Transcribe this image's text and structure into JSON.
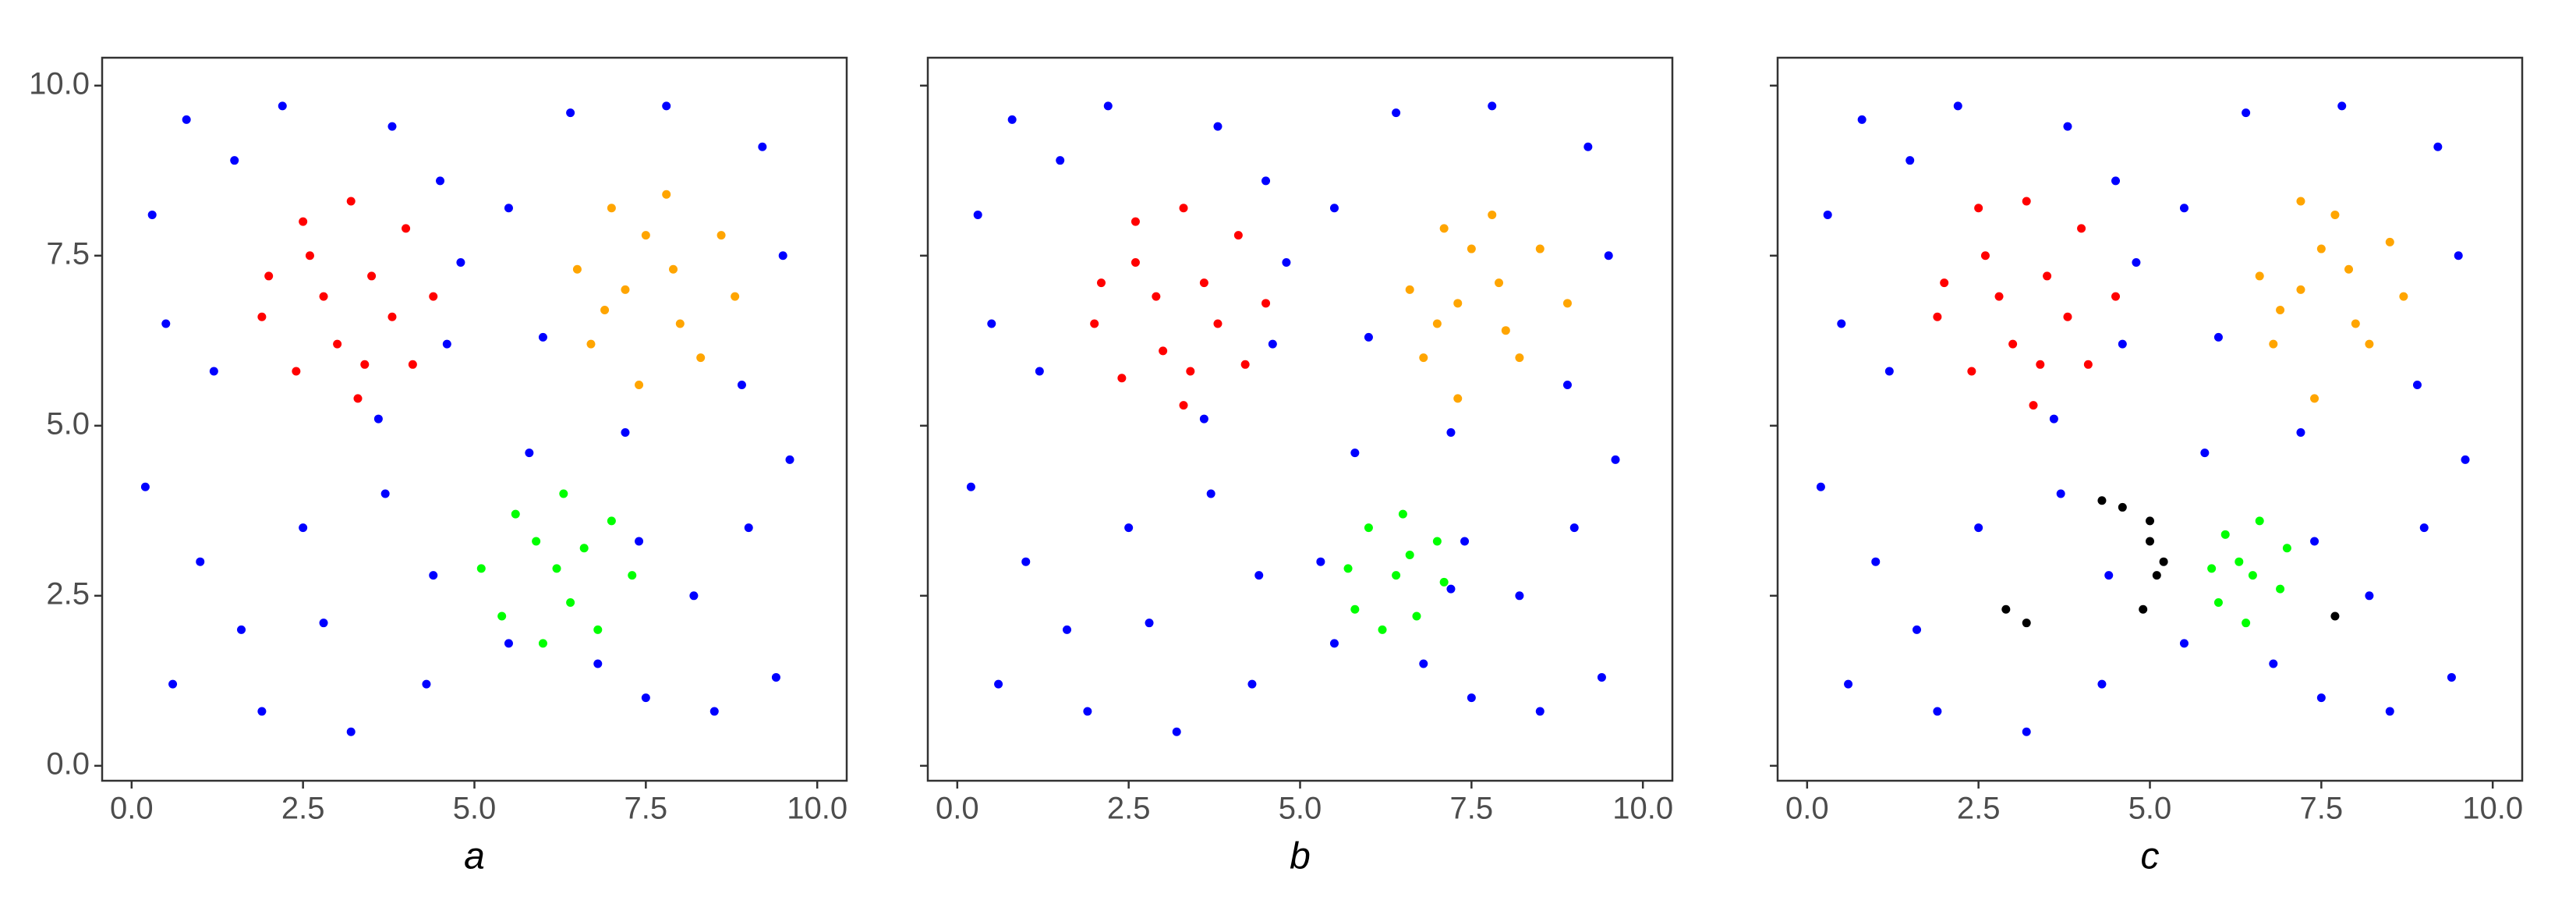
{
  "chart_data": [
    {
      "type": "scatter",
      "xlabel": "a",
      "xlim": [
        -0.43,
        10.43
      ],
      "ylim": [
        -0.22,
        10.41
      ],
      "xticks": [
        {
          "value": 0,
          "label": "0.0"
        },
        {
          "value": 2.5,
          "label": "2.5"
        },
        {
          "value": 5,
          "label": "5.0"
        },
        {
          "value": 7.5,
          "label": "7.5"
        },
        {
          "value": 10,
          "label": "10.0"
        }
      ],
      "yticks": [
        {
          "value": 0,
          "label": "0.0"
        },
        {
          "value": 2.5,
          "label": "2.5"
        },
        {
          "value": 5,
          "label": "5.0"
        },
        {
          "value": 7.5,
          "label": "7.5"
        },
        {
          "value": 10,
          "label": "10.0"
        }
      ],
      "series": [
        {
          "color": "#0000ff",
          "x": [
            0.3,
            0.8,
            1.5,
            2.2,
            3.8,
            4.5,
            0.5,
            1.2,
            4.6,
            4.8,
            5.5,
            6.4,
            7.8,
            9.2,
            9.5,
            8.9,
            6.0,
            5.8,
            7.2,
            9.6,
            0.2,
            1.0,
            2.5,
            3.7,
            4.4,
            0.6,
            1.9,
            3.2,
            4.3,
            5.5,
            7.5,
            8.5,
            9.4,
            8.2,
            7.4,
            9.0,
            2.8,
            1.6,
            6.8,
            3.6
          ],
          "values": [
            8.1,
            9.5,
            8.9,
            9.7,
            9.4,
            8.6,
            6.5,
            5.8,
            6.2,
            7.4,
            8.2,
            9.6,
            9.7,
            9.1,
            7.5,
            5.6,
            6.3,
            4.6,
            4.9,
            4.5,
            4.1,
            3.0,
            3.5,
            4.0,
            2.8,
            1.2,
            0.8,
            0.5,
            1.2,
            1.8,
            1.0,
            0.8,
            1.3,
            2.5,
            3.3,
            3.5,
            2.1,
            2.0,
            1.5,
            5.1
          ]
        },
        {
          "color": "#ff0000",
          "x": [
            2.0,
            2.5,
            3.2,
            4.0,
            4.4,
            4.1,
            3.3,
            2.4,
            1.9,
            2.8,
            3.5,
            3.0,
            3.8,
            2.6,
            3.4
          ],
          "values": [
            7.2,
            8.0,
            8.3,
            7.9,
            6.9,
            5.9,
            5.4,
            5.8,
            6.6,
            6.9,
            7.2,
            6.2,
            6.6,
            7.5,
            5.9
          ]
        },
        {
          "color": "#ffa500",
          "x": [
            6.5,
            7.0,
            7.8,
            8.6,
            8.8,
            8.3,
            7.4,
            6.7,
            7.2,
            7.9,
            8.0,
            7.5,
            6.9
          ],
          "values": [
            7.3,
            8.2,
            8.4,
            7.8,
            6.9,
            6.0,
            5.6,
            6.2,
            7.0,
            7.3,
            6.5,
            7.8,
            6.7
          ]
        },
        {
          "color": "#00ff00",
          "x": [
            5.1,
            5.6,
            6.3,
            7.0,
            7.3,
            6.8,
            6.0,
            5.4,
            6.2,
            6.6,
            5.9,
            6.4
          ],
          "values": [
            2.9,
            3.7,
            4.0,
            3.6,
            2.8,
            2.0,
            1.8,
            2.2,
            2.9,
            3.2,
            3.3,
            2.4
          ]
        }
      ]
    },
    {
      "type": "scatter",
      "xlabel": "b",
      "xlim": [
        -0.43,
        10.43
      ],
      "ylim": [
        -0.22,
        10.41
      ],
      "xticks": [
        {
          "value": 0,
          "label": "0.0"
        },
        {
          "value": 2.5,
          "label": "2.5"
        },
        {
          "value": 5,
          "label": "5.0"
        },
        {
          "value": 7.5,
          "label": "7.5"
        },
        {
          "value": 10,
          "label": "10.0"
        }
      ],
      "yticks": [
        0,
        2.5,
        5,
        7.5,
        10
      ],
      "series": [
        {
          "color": "#0000ff",
          "x": [
            0.3,
            0.8,
            1.5,
            2.2,
            3.8,
            4.5,
            0.5,
            1.2,
            4.6,
            4.8,
            5.5,
            6.4,
            7.8,
            9.2,
            9.5,
            8.9,
            6.0,
            5.8,
            7.2,
            9.6,
            0.2,
            1.0,
            2.5,
            3.7,
            4.4,
            0.6,
            1.9,
            3.2,
            4.3,
            5.5,
            7.5,
            8.5,
            9.4,
            8.2,
            7.4,
            9.0,
            2.8,
            1.6,
            6.8,
            3.6,
            5.3,
            7.2
          ],
          "values": [
            8.1,
            9.5,
            8.9,
            9.7,
            9.4,
            8.6,
            6.5,
            5.8,
            6.2,
            7.4,
            8.2,
            9.6,
            9.7,
            9.1,
            7.5,
            5.6,
            6.3,
            4.6,
            4.9,
            4.5,
            4.1,
            3.0,
            3.5,
            4.0,
            2.8,
            1.2,
            0.8,
            0.5,
            1.2,
            1.8,
            1.0,
            0.8,
            1.3,
            2.5,
            3.3,
            3.5,
            2.1,
            2.0,
            1.5,
            5.1,
            3.0,
            2.6
          ]
        },
        {
          "color": "#ff0000",
          "x": [
            2.1,
            2.6,
            3.3,
            4.1,
            4.5,
            4.2,
            3.3,
            2.4,
            2.0,
            2.9,
            3.6,
            3.0,
            3.8,
            2.6,
            3.4
          ],
          "values": [
            7.1,
            8.0,
            8.2,
            7.8,
            6.8,
            5.9,
            5.3,
            5.7,
            6.5,
            6.9,
            7.1,
            6.1,
            6.5,
            7.4,
            5.8
          ]
        },
        {
          "color": "#ffa500",
          "x": [
            6.6,
            7.1,
            7.8,
            8.5,
            8.9,
            8.2,
            7.3,
            6.8,
            7.3,
            7.9,
            8.0,
            7.5,
            7.0
          ],
          "values": [
            7.0,
            7.9,
            8.1,
            7.6,
            6.8,
            6.0,
            5.4,
            6.0,
            6.8,
            7.1,
            6.4,
            7.6,
            6.5
          ]
        },
        {
          "color": "#00ff00",
          "x": [
            5.7,
            6.0,
            6.5,
            7.0,
            7.1,
            6.7,
            6.2,
            5.8,
            6.4,
            6.6
          ],
          "values": [
            2.9,
            3.5,
            3.7,
            3.3,
            2.7,
            2.2,
            2.0,
            2.3,
            2.8,
            3.1
          ]
        }
      ]
    },
    {
      "type": "scatter",
      "xlabel": "c",
      "xlim": [
        -0.43,
        10.43
      ],
      "ylim": [
        -0.22,
        10.41
      ],
      "xticks": [
        {
          "value": 0,
          "label": "0.0"
        },
        {
          "value": 2.5,
          "label": "2.5"
        },
        {
          "value": 5,
          "label": "5.0"
        },
        {
          "value": 7.5,
          "label": "7.5"
        },
        {
          "value": 10,
          "label": "10.0"
        }
      ],
      "yticks": [
        0,
        2.5,
        5,
        7.5,
        10
      ],
      "series": [
        {
          "color": "#0000ff",
          "x": [
            0.3,
            0.8,
            1.5,
            2.2,
            3.8,
            4.5,
            0.5,
            1.2,
            4.6,
            4.8,
            5.5,
            6.4,
            7.8,
            9.2,
            9.5,
            8.9,
            6.0,
            5.8,
            7.2,
            9.6,
            0.2,
            1.0,
            2.5,
            3.7,
            4.4,
            0.6,
            1.9,
            3.2,
            4.3,
            5.5,
            7.5,
            8.5,
            9.4,
            8.2,
            7.4,
            9.0,
            1.6,
            6.8,
            3.6
          ],
          "values": [
            8.1,
            9.5,
            8.9,
            9.7,
            9.4,
            8.6,
            6.5,
            5.8,
            6.2,
            7.4,
            8.2,
            9.6,
            9.7,
            9.1,
            7.5,
            5.6,
            6.3,
            4.6,
            4.9,
            4.5,
            4.1,
            3.0,
            3.5,
            4.0,
            2.8,
            1.2,
            0.8,
            0.5,
            1.2,
            1.8,
            1.0,
            0.8,
            1.3,
            2.5,
            3.3,
            3.5,
            2.0,
            1.5,
            5.1
          ]
        },
        {
          "color": "#ff0000",
          "x": [
            2.0,
            2.5,
            3.2,
            4.0,
            4.5,
            4.1,
            3.3,
            2.4,
            1.9,
            2.8,
            3.5,
            3.0,
            3.8,
            2.6,
            3.4
          ],
          "values": [
            7.1,
            8.2,
            8.3,
            7.9,
            6.9,
            5.9,
            5.3,
            5.8,
            6.6,
            6.9,
            7.2,
            6.2,
            6.6,
            7.5,
            5.9
          ]
        },
        {
          "color": "#ffa500",
          "x": [
            6.6,
            7.2,
            7.7,
            8.5,
            8.7,
            8.2,
            7.4,
            6.8,
            7.2,
            7.9,
            8.0,
            7.5,
            6.9
          ],
          "values": [
            7.2,
            8.3,
            8.1,
            7.7,
            6.9,
            6.2,
            5.4,
            6.2,
            7.0,
            7.3,
            6.5,
            7.6,
            6.7
          ]
        },
        {
          "color": "#00ff00",
          "x": [
            5.9,
            6.1,
            6.6,
            7.0,
            6.9,
            6.4,
            6.0,
            6.5,
            6.3
          ],
          "values": [
            2.9,
            3.4,
            3.6,
            3.2,
            2.6,
            2.1,
            2.4,
            2.8,
            3.0
          ]
        },
        {
          "color": "#000000",
          "x": [
            4.3,
            4.6,
            5.0,
            5.1,
            5.2,
            4.9,
            2.9,
            3.2,
            7.7,
            5.0
          ],
          "values": [
            3.9,
            3.8,
            3.3,
            2.8,
            3.0,
            2.3,
            2.3,
            2.1,
            2.2,
            3.6
          ]
        }
      ]
    }
  ]
}
